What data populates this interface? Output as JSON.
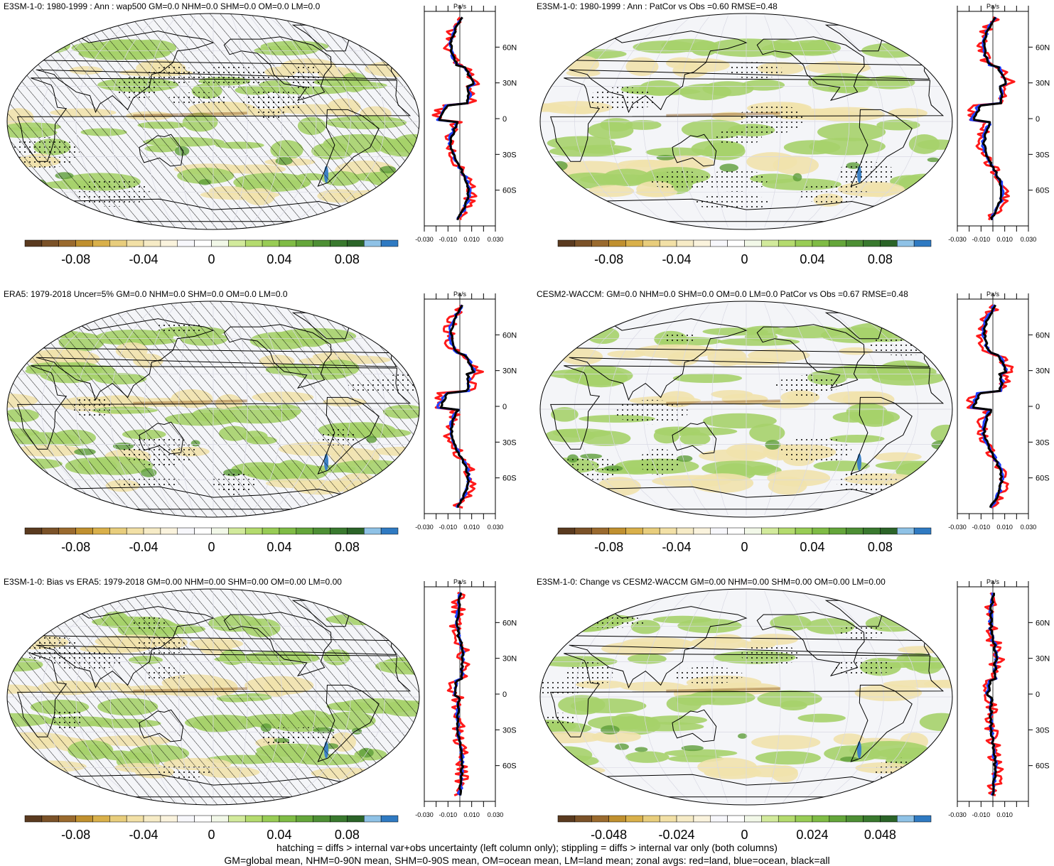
{
  "colorbar_colors": [
    "#5a3a1f",
    "#7b5228",
    "#9a6a2e",
    "#c0902f",
    "#d9b04a",
    "#e8cd7c",
    "#f2e0a6",
    "#f6ebc6",
    "#faf3dd",
    "#f7f7fb",
    "#ffffff",
    "#f2f8e8",
    "#d2ea9c",
    "#b4db6e",
    "#98cc55",
    "#7fbc45",
    "#64a63a",
    "#4d8f34",
    "#39792e",
    "#2b6428",
    "#8fc2e6",
    "#2f7ac2"
  ],
  "map_colors": {
    "land_outline": "#000000",
    "neutral": "#f4f5f8",
    "green": "#a6d26a",
    "green_dark": "#5e9e3a",
    "tan": "#f1e2ac",
    "brown": "#9a6a2e",
    "blue": "#3d82c6"
  },
  "line_colors": {
    "land": "#ff1a1a",
    "ocean": "#1f3fff",
    "all": "#000000"
  },
  "panels": [
    {
      "title": "E3SM-1-0: 1980-1999 : Ann : wap500 GM=0.0 NHM=0.0 SHM=0.0 OM=0.0 LM=0.0",
      "hatched": true,
      "zonal": {
        "unit": "Pa/s",
        "xticks": [
          "-0.030",
          "-0.010",
          "0.010",
          "0.030"
        ],
        "lat_labels": [
          "60N",
          "30N",
          "0",
          "30S",
          "60S"
        ]
      },
      "colorbar": {
        "labels": [
          "-0.08",
          "-0.04",
          "0",
          "0.04",
          "0.08"
        ]
      }
    },
    {
      "title": "E3SM-1-0: 1980-1999 : Ann : PatCor vs Obs =0.60 RMSE=0.48",
      "hatched": false,
      "zonal": {
        "unit": "Pa/s",
        "xticks": [
          "-0.030",
          "-0.010",
          "0.010",
          "0.030"
        ],
        "lat_labels": [
          "60N",
          "30N",
          "0",
          "30S",
          "60S"
        ]
      },
      "colorbar": {
        "labels": [
          "-0.08",
          "-0.04",
          "0",
          "0.04",
          "0.08"
        ]
      }
    },
    {
      "title": "ERA5: 1979-2018 Uncer=5% GM=0.0 NHM=0.0 SHM=0.0 OM=0.0 LM=0.0",
      "hatched": true,
      "zonal": {
        "unit": "Pa/s",
        "xticks": [
          "-0.030",
          "-0.010",
          "0.010",
          "0.030"
        ],
        "lat_labels": [
          "60N",
          "30N",
          "0",
          "30S",
          "60S"
        ]
      },
      "colorbar": {
        "labels": [
          "-0.08",
          "-0.04",
          "0",
          "0.04",
          "0.08"
        ]
      }
    },
    {
      "title": "CESM2-WACCM: GM=0.0 NHM=0.0 SHM=0.0 OM=0.0 LM=0.0 PatCor vs Obs =0.67 RMSE=0.48",
      "hatched": false,
      "zonal": {
        "unit": "Pa/s",
        "xticks": [
          "-0.030",
          "-0.010",
          "0.010",
          "0.030"
        ],
        "lat_labels": [
          "60N",
          "30N",
          "0",
          "30S",
          "60S"
        ]
      },
      "colorbar": {
        "labels": [
          "-0.08",
          "-0.04",
          "0",
          "0.04",
          "0.08"
        ]
      }
    },
    {
      "title": "E3SM-1-0: Bias vs ERA5: 1979-2018 GM=0.00 NHM=0.00 SHM=0.00 OM=0.00 LM=0.00",
      "hatched": true,
      "zonal": {
        "unit": "Pa/s",
        "xticks": [
          "-0.030",
          "-0.010",
          "0.010",
          "0.030"
        ],
        "lat_labels": [
          "60N",
          "30N",
          "0",
          "30S",
          "60S"
        ]
      },
      "colorbar": {
        "labels": [
          "-0.08",
          "-0.04",
          "0",
          "0.04",
          "0.08"
        ]
      }
    },
    {
      "title": "E3SM-1-0: Change vs CESM2-WACCM GM=0.00 NHM=0.00 SHM=0.00 OM=0.00 LM=0.00",
      "hatched": false,
      "zonal": {
        "unit": "Pa/s",
        "xticks": [
          "-0.030",
          "-0.010",
          "0.010"
        ],
        "lat_labels": [
          "60N",
          "30N",
          "0",
          "30S",
          "60S"
        ]
      },
      "colorbar": {
        "labels": [
          "-0.048",
          "-0.024",
          "0",
          "0.024",
          "0.048"
        ]
      }
    }
  ],
  "footer": {
    "line1": "hatching = diffs > internal var+obs uncertainty (left column only); stippling = diffs > internal var only (both columns)",
    "line2": "GM=global mean, NHM=0-90N mean, SHM=0-90S mean, OM=ocean mean, LM=land mean; zonal avgs: red=land, blue=ocean, black=all"
  },
  "chart_data": [
    {
      "type": "heatmap",
      "title": "E3SM-1-0: 1980-1999 : Ann : wap500 GM=0.0 NHM=0.0 SHM=0.0 OM=0.0 LM=0.0",
      "colorbar_range": [
        -0.1,
        0.1
      ],
      "colorbar_ticks": [
        -0.08,
        -0.04,
        0,
        0.04,
        0.08
      ],
      "zonal_unit": "Pa/s",
      "zonal_xlim": [
        -0.03,
        0.03
      ],
      "lat_ticks": [
        60,
        30,
        0,
        -30,
        -60
      ]
    },
    {
      "type": "heatmap",
      "title": "E3SM-1-0: 1980-1999 : Ann : PatCor vs Obs =0.60 RMSE=0.48",
      "colorbar_range": [
        -0.1,
        0.1
      ],
      "colorbar_ticks": [
        -0.08,
        -0.04,
        0,
        0.04,
        0.08
      ],
      "zonal_unit": "Pa/s",
      "zonal_xlim": [
        -0.03,
        0.03
      ],
      "lat_ticks": [
        60,
        30,
        0,
        -30,
        -60
      ]
    },
    {
      "type": "heatmap",
      "title": "ERA5: 1979-2018 Uncer=5% GM=0.0 NHM=0.0 SHM=0.0 OM=0.0 LM=0.0",
      "colorbar_range": [
        -0.1,
        0.1
      ],
      "colorbar_ticks": [
        -0.08,
        -0.04,
        0,
        0.04,
        0.08
      ],
      "zonal_unit": "Pa/s",
      "zonal_xlim": [
        -0.03,
        0.03
      ],
      "lat_ticks": [
        60,
        30,
        0,
        -30,
        -60
      ]
    },
    {
      "type": "heatmap",
      "title": "CESM2-WACCM: GM=0.0 NHM=0.0 SHM=0.0 OM=0.0 LM=0.0 PatCor vs Obs =0.67 RMSE=0.48",
      "colorbar_range": [
        -0.1,
        0.1
      ],
      "colorbar_ticks": [
        -0.08,
        -0.04,
        0,
        0.04,
        0.08
      ],
      "zonal_unit": "Pa/s",
      "zonal_xlim": [
        -0.03,
        0.03
      ],
      "lat_ticks": [
        60,
        30,
        0,
        -30,
        -60
      ]
    },
    {
      "type": "heatmap",
      "title": "E3SM-1-0: Bias vs ERA5: 1979-2018 GM=0.00 NHM=0.00 SHM=0.00 OM=0.00 LM=0.00",
      "colorbar_range": [
        -0.1,
        0.1
      ],
      "colorbar_ticks": [
        -0.08,
        -0.04,
        0,
        0.04,
        0.08
      ],
      "zonal_unit": "Pa/s",
      "zonal_xlim": [
        -0.03,
        0.03
      ],
      "lat_ticks": [
        60,
        30,
        0,
        -30,
        -60
      ]
    },
    {
      "type": "heatmap",
      "title": "E3SM-1-0: Change vs CESM2-WACCM GM=0.00 NHM=0.00 SHM=0.00 OM=0.00 LM=0.00",
      "colorbar_range": [
        -0.06,
        0.06
      ],
      "colorbar_ticks": [
        -0.048,
        -0.024,
        0,
        0.024,
        0.048
      ],
      "zonal_unit": "Pa/s",
      "zonal_xlim": [
        -0.03,
        0.01
      ],
      "lat_ticks": [
        60,
        30,
        0,
        -30,
        -60
      ]
    }
  ]
}
